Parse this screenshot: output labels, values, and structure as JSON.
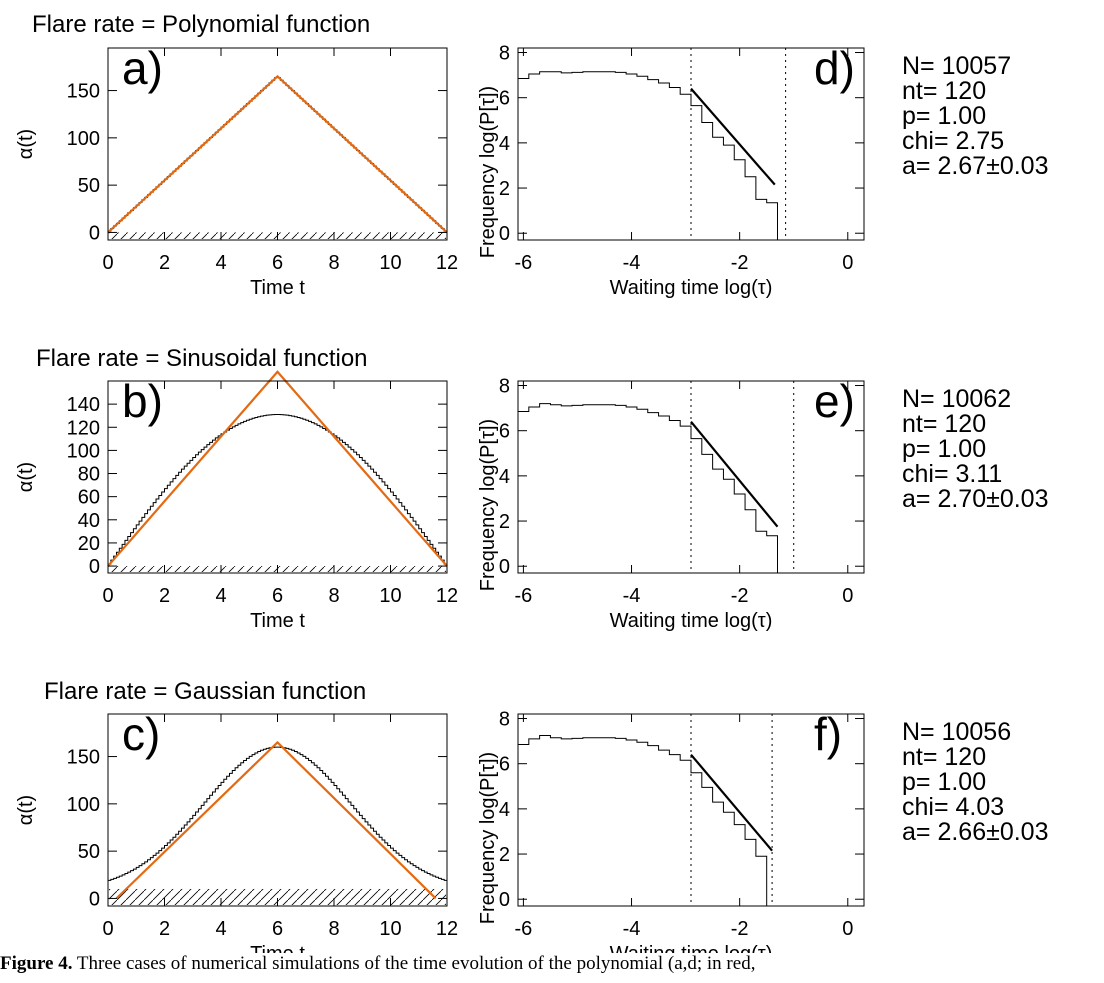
{
  "figure": {
    "caption_label": "Figure 4.",
    "caption_text": "Three cases of numerical simulations of the time evolution of the polynomial (a,d; in red,"
  },
  "colors": {
    "fit": "#e36a12",
    "data": "#000000"
  },
  "chart_data": [
    {
      "panel": "a)",
      "type": "line",
      "title": "Flare rate = Polynomial function",
      "xlabel": "Time t",
      "ylabel": "α(t)",
      "xlim": [
        0,
        12
      ],
      "ylim": [
        -8,
        195
      ],
      "xticks": [
        0,
        2,
        4,
        6,
        8,
        10,
        12
      ],
      "yticks": [
        0,
        50,
        100,
        150
      ],
      "model": "triangle",
      "peak": 165,
      "fit_peak": 165,
      "fit_zero": [
        0,
        12
      ],
      "hatch_top": 0
    },
    {
      "panel": "b)",
      "type": "line",
      "title": "Flare rate = Sinusoidal function",
      "xlabel": "Time t",
      "ylabel": "α(t)",
      "xlim": [
        0,
        12
      ],
      "ylim": [
        -6,
        160
      ],
      "xticks": [
        0,
        2,
        4,
        6,
        8,
        10,
        12
      ],
      "yticks": [
        0,
        20,
        40,
        60,
        80,
        100,
        120,
        140
      ],
      "model": "sine",
      "peak": 131,
      "fit_peak": 168,
      "fit_zero": [
        0,
        12
      ],
      "hatch_top": 0
    },
    {
      "panel": "c)",
      "type": "line",
      "title": "Flare rate = Gaussian function",
      "xlabel": "Time t",
      "ylabel": "α(t)",
      "xlim": [
        0,
        12
      ],
      "ylim": [
        -8,
        195
      ],
      "xticks": [
        0,
        2,
        4,
        6,
        8,
        10,
        12
      ],
      "yticks": [
        0,
        50,
        100,
        150
      ],
      "model": "gauss",
      "peak": 160,
      "base": 8,
      "sigma": 2.6,
      "fit_peak": 165,
      "fit_zero": [
        0.3,
        11.6
      ],
      "hatch_top": 10
    },
    {
      "panel": "d)",
      "type": "histogram",
      "xlabel": "Waiting time  log(τ)",
      "ylabel": "Frequency  log(P[τ])",
      "xlim": [
        -6.1,
        0.3
      ],
      "ylim": [
        -0.3,
        8.2
      ],
      "xticks": [
        -6,
        -4,
        -2,
        0
      ],
      "yticks": [
        0,
        2,
        4,
        6,
        8
      ],
      "bins_start": -6.1,
      "bin_width": 0.2,
      "y": [
        6.85,
        7.05,
        7.15,
        7.15,
        7.1,
        7.12,
        7.15,
        7.15,
        7.15,
        7.12,
        7.05,
        6.95,
        6.8,
        6.65,
        6.45,
        6.15,
        5.65,
        4.9,
        4.25,
        3.9,
        3.25,
        2.5,
        1.5,
        1.35,
        -0.3
      ],
      "fit_x": [
        -2.9,
        -1.35
      ],
      "fit_y": [
        6.4,
        2.15
      ],
      "vlines": [
        -2.9,
        -1.15
      ],
      "stats": {
        "N": "N= 10057",
        "nt": "nt=   120",
        "p": "p= 1.00",
        "chi": "chi= 2.75",
        "a": "a= 2.67",
        "a_err": "±0.03"
      }
    },
    {
      "panel": "e)",
      "type": "histogram",
      "xlabel": "Waiting time  log(τ)",
      "ylabel": "Frequency  log(P[τ])",
      "xlim": [
        -6.1,
        0.3
      ],
      "ylim": [
        -0.3,
        8.2
      ],
      "xticks": [
        -6,
        -4,
        -2,
        0
      ],
      "yticks": [
        0,
        2,
        4,
        6,
        8
      ],
      "bins_start": -6.1,
      "bin_width": 0.2,
      "y": [
        6.85,
        7.05,
        7.2,
        7.15,
        7.1,
        7.12,
        7.15,
        7.15,
        7.15,
        7.12,
        7.05,
        6.95,
        6.8,
        6.65,
        6.45,
        6.2,
        5.65,
        4.95,
        4.3,
        3.85,
        3.2,
        2.5,
        1.55,
        1.35,
        -0.3
      ],
      "fit_x": [
        -2.9,
        -1.3
      ],
      "fit_y": [
        6.4,
        1.75
      ],
      "vlines": [
        -2.9,
        -1.0
      ],
      "stats": {
        "N": "N= 10062",
        "nt": "nt=   120",
        "p": "p= 1.00",
        "chi": "chi= 3.11",
        "a": "a= 2.70",
        "a_err": "±0.03"
      }
    },
    {
      "panel": "f)",
      "type": "histogram",
      "xlabel": "Waiting time  log(τ)",
      "ylabel": "Frequency  log(P[τ])",
      "xlim": [
        -6.1,
        0.3
      ],
      "ylim": [
        -0.3,
        8.2
      ],
      "xticks": [
        -6,
        -4,
        -2,
        0
      ],
      "yticks": [
        0,
        2,
        4,
        6,
        8
      ],
      "bins_start": -6.1,
      "bin_width": 0.2,
      "y": [
        6.85,
        7.1,
        7.25,
        7.15,
        7.1,
        7.12,
        7.15,
        7.15,
        7.15,
        7.12,
        7.05,
        6.95,
        6.8,
        6.6,
        6.4,
        6.15,
        5.6,
        4.95,
        4.3,
        3.85,
        3.3,
        2.65,
        1.9,
        -0.3
      ],
      "fit_x": [
        -2.9,
        -1.4
      ],
      "fit_y": [
        6.4,
        2.15
      ],
      "vlines": [
        -2.9,
        -1.4
      ],
      "stats": {
        "N": "N= 10056",
        "nt": "nt=   120",
        "p": "p= 1.00",
        "chi": "chi= 4.03",
        "a": "a= 2.66",
        "a_err": "±0.03"
      }
    }
  ]
}
